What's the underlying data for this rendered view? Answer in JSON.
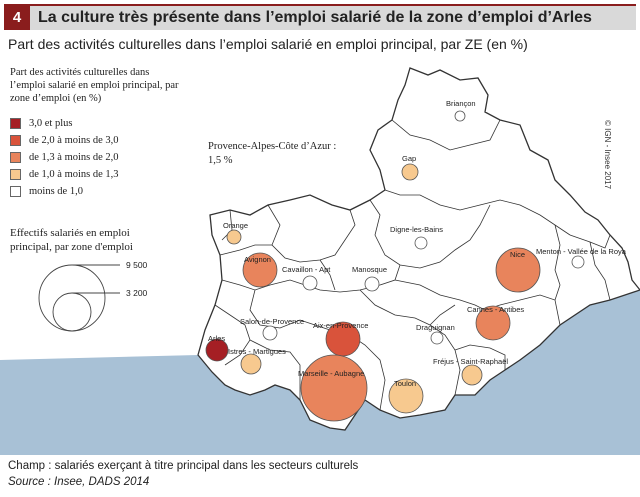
{
  "figure": {
    "number": "4",
    "title": "La culture très présente dans l’emploi salarié de la zone d’emploi d’Arles",
    "subtitle": "Part des activités culturelles dans l’emploi salarié en emploi principal, par ZE (en %)"
  },
  "legend": {
    "title": "Part des activités culturelles dans l’emploi salarié en emploi principal, par zone d’emploi (en %)",
    "classes": [
      {
        "label": "3,0 et plus",
        "color": "#a51f24"
      },
      {
        "label": "de 2,0 à moins de 3,0",
        "color": "#d9533b"
      },
      {
        "label": "de 1,3 à moins de 2,0",
        "color": "#e8845c"
      },
      {
        "label": "de 1,0 à moins de 1,3",
        "color": "#f7c98f"
      },
      {
        "label": "moins de 1,0",
        "color": "#ffffff"
      }
    ],
    "paca_note_label": "Provence-Alpes-Côte d’Azur :",
    "paca_note_value": "1,5 %",
    "size_title": "Effectifs salariés en emploi principal, par zone d'emploi",
    "size_values": [
      "9 500",
      "3 200"
    ]
  },
  "zones": [
    {
      "name": "Briançon",
      "class": 4
    },
    {
      "name": "Gap",
      "class": 3
    },
    {
      "name": "Digne-les-Bains",
      "class": 4
    },
    {
      "name": "Menton - Vallée de la Roya",
      "class": 4
    },
    {
      "name": "Orange",
      "class": 3
    },
    {
      "name": "Avignon",
      "class": 2
    },
    {
      "name": "Cavaillon - Apt",
      "class": 4
    },
    {
      "name": "Manosque",
      "class": 4
    },
    {
      "name": "Nice",
      "class": 2
    },
    {
      "name": "Salon-de-Provence",
      "class": 4
    },
    {
      "name": "Aix-en-Provence",
      "class": 1
    },
    {
      "name": "Arles",
      "class": 0
    },
    {
      "name": "Istres - Martigues",
      "class": 3
    },
    {
      "name": "Cannes - Antibes",
      "class": 2
    },
    {
      "name": "Draguignan",
      "class": 4
    },
    {
      "name": "Fréjus - Saint-Raphaël",
      "class": 3
    },
    {
      "name": "Marseille - Aubagne",
      "class": 2
    },
    {
      "name": "Toulon",
      "class": 3
    }
  ],
  "copyright": "© IGN - Insee 2017",
  "footer": {
    "champ": "Champ : salariés exerçant à titre principal dans les secteurs culturels",
    "source": "Source : Insee, DADS 2014"
  }
}
